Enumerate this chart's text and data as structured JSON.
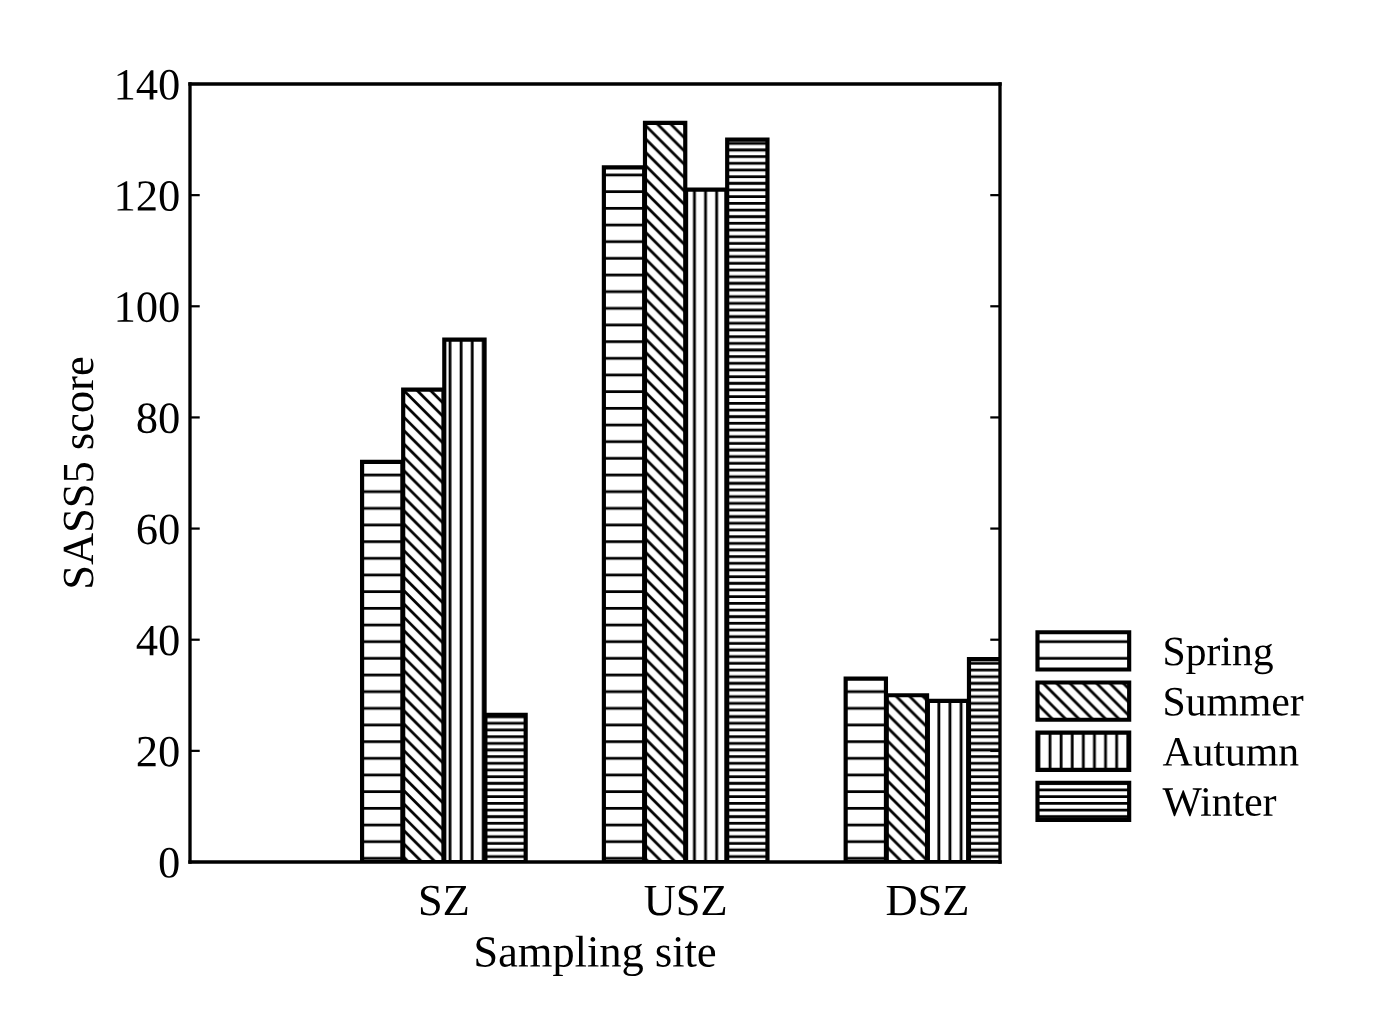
{
  "chart_data": {
    "type": "bar",
    "xlabel": "Sampling site",
    "ylabel": "SASS5 score",
    "categories": [
      "SZ",
      "USZ",
      "DSZ"
    ],
    "series": [
      {
        "name": "Spring",
        "color": "#000000",
        "values": [
          72,
          125,
          33
        ]
      },
      {
        "name": "Summer",
        "color": "#000000",
        "values": [
          85,
          133,
          30
        ]
      },
      {
        "name": "Autumn",
        "color": "#000000",
        "values": [
          94,
          121,
          29
        ]
      },
      {
        "name": "Winter",
        "color": "#000000",
        "values": [
          26.5,
          130,
          36.5
        ]
      }
    ],
    "ylim": [
      0,
      140
    ],
    "yticks": [
      0,
      20,
      40,
      60,
      80,
      100,
      120,
      140
    ],
    "grid": false,
    "legend": "bottom right"
  }
}
